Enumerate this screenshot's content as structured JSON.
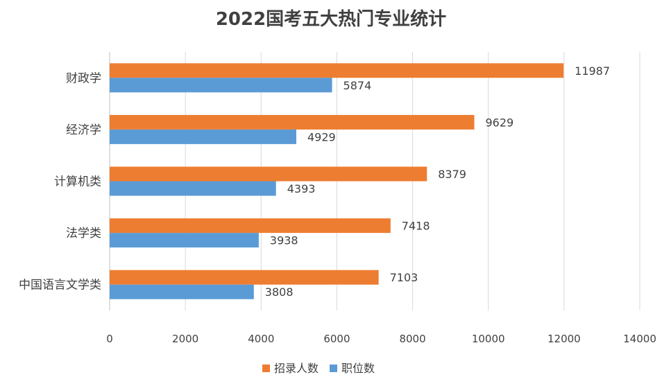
{
  "chart_data": {
    "type": "bar",
    "orientation": "horizontal",
    "title": "2022国考五大热门专业统计",
    "categories": [
      "财政学",
      "经济学",
      "计算机类",
      "法学类",
      "中国语言文学类"
    ],
    "series": [
      {
        "name": "招录人数",
        "color": "#ED7D31",
        "values": [
          11987,
          9629,
          8379,
          7418,
          7103
        ]
      },
      {
        "name": "职位数",
        "color": "#5B9BD5",
        "values": [
          5874,
          4929,
          4393,
          3938,
          3808
        ]
      }
    ],
    "xlim": [
      0,
      14000
    ],
    "xticks": [
      "0",
      "2000",
      "4000",
      "6000",
      "8000",
      "10000",
      "12000",
      "14000"
    ],
    "grid": true,
    "legend_position": "bottom",
    "data_labels": true
  }
}
